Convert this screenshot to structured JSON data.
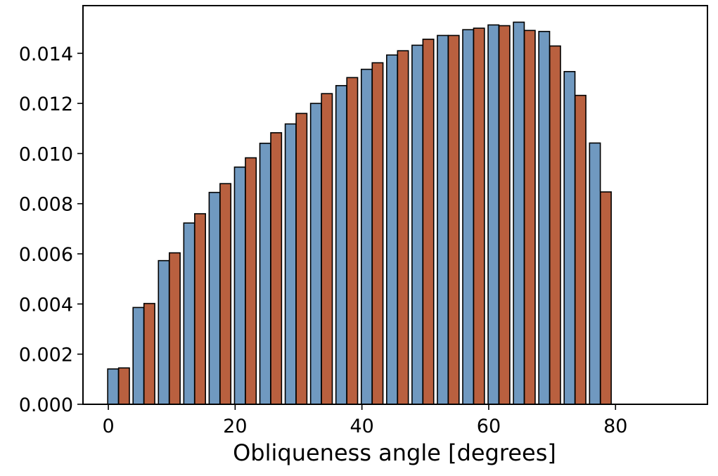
{
  "chart_data": {
    "type": "bar",
    "title": "",
    "xlabel": "Obliqueness angle [degrees]",
    "ylabel": "",
    "xlim": [
      -4,
      94.5
    ],
    "ylim": [
      0,
      0.0159
    ],
    "xticks": [
      0,
      20,
      40,
      60,
      80
    ],
    "xtick_labels": [
      "0",
      "20",
      "40",
      "60",
      "80"
    ],
    "yticks": [
      0,
      0.002,
      0.004,
      0.006,
      0.008,
      0.01,
      0.012,
      0.014
    ],
    "ytick_labels": [
      "0.000",
      "0.002",
      "0.004",
      "0.006",
      "0.008",
      "0.010",
      "0.012",
      "0.014"
    ],
    "grid": false,
    "bin_centers": [
      2,
      6,
      10,
      14,
      18,
      22,
      26,
      30,
      34,
      38,
      42,
      46,
      50,
      54,
      58,
      62,
      66,
      70,
      74,
      78,
      82,
      86,
      90
    ],
    "series": [
      {
        "color": "#7099c0",
        "values": [
          0.00141,
          0.00386,
          0.00573,
          0.00723,
          0.00845,
          0.00946,
          0.01041,
          0.01118,
          0.012,
          0.01271,
          0.01336,
          0.01393,
          0.01432,
          0.01471,
          0.01494,
          0.01513,
          0.01524,
          0.01487,
          0.01327,
          0.01042,
          0.0,
          0.0,
          0.0
        ]
      },
      {
        "color": "#b9603f",
        "values": [
          0.00145,
          0.00402,
          0.00604,
          0.0076,
          0.0088,
          0.00983,
          0.01083,
          0.0116,
          0.01239,
          0.01303,
          0.01362,
          0.0141,
          0.01456,
          0.01471,
          0.015,
          0.0151,
          0.01491,
          0.01429,
          0.01232,
          0.00847,
          0.0,
          0.0,
          0.0
        ]
      }
    ]
  }
}
